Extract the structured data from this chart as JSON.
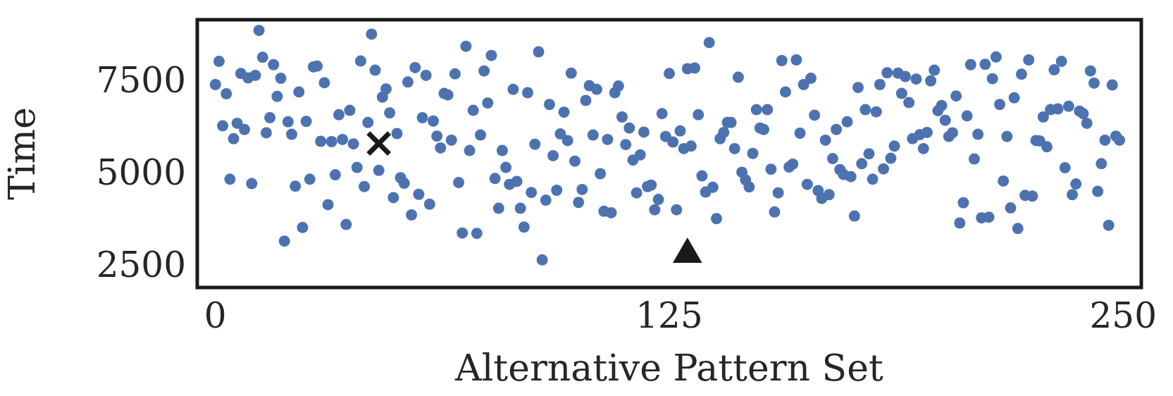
{
  "chart_data": {
    "type": "scatter",
    "xlabel": "Alternative Pattern Set",
    "ylabel": "Time",
    "xlim": [
      -5,
      255
    ],
    "xticks": [
      0,
      125,
      250
    ],
    "ylim": [
      1960,
      9230
    ],
    "yticks": [
      2500,
      5000,
      7500
    ],
    "grid": false,
    "legend": false,
    "marker": "circle",
    "x": [
      0,
      1,
      2,
      3,
      4,
      5,
      6,
      7,
      8,
      9,
      10,
      11,
      12,
      13,
      14,
      15,
      16,
      17,
      18,
      19,
      20,
      21,
      22,
      23,
      24,
      25,
      26,
      27,
      28,
      29,
      30,
      31,
      32,
      33,
      34,
      35,
      36,
      37,
      38,
      39,
      40,
      41,
      42,
      43,
      44,
      45,
      46,
      47,
      48,
      49,
      50,
      51,
      52,
      53,
      54,
      55,
      56,
      57,
      58,
      59,
      60,
      61,
      62,
      63,
      64,
      65,
      66,
      67,
      68,
      69,
      70,
      71,
      72,
      73,
      74,
      75,
      76,
      77,
      78,
      79,
      80,
      81,
      82,
      83,
      84,
      85,
      86,
      87,
      88,
      89,
      90,
      91,
      92,
      93,
      94,
      95,
      96,
      97,
      98,
      99,
      100,
      101,
      102,
      103,
      104,
      105,
      106,
      107,
      108,
      109,
      110,
      111,
      112,
      113,
      114,
      115,
      116,
      117,
      118,
      119,
      120,
      121,
      122,
      123,
      124,
      125,
      126,
      127,
      128,
      129,
      130,
      131,
      132,
      133,
      134,
      135,
      136,
      137,
      138,
      139,
      140,
      141,
      142,
      143,
      144,
      145,
      146,
      147,
      148,
      149,
      150,
      151,
      152,
      153,
      154,
      155,
      156,
      157,
      158,
      159,
      160,
      161,
      162,
      163,
      164,
      165,
      166,
      167,
      168,
      169,
      170,
      171,
      172,
      173,
      174,
      175,
      176,
      177,
      178,
      179,
      180,
      181,
      182,
      183,
      184,
      185,
      186,
      187,
      188,
      189,
      190,
      191,
      192,
      193,
      194,
      195,
      196,
      197,
      198,
      199,
      200,
      201,
      202,
      203,
      204,
      205,
      206,
      207,
      208,
      209,
      210,
      211,
      212,
      213,
      214,
      215,
      216,
      217,
      218,
      219,
      220,
      221,
      222,
      223,
      224,
      225,
      226,
      227,
      228,
      229,
      230,
      231,
      232,
      233,
      234,
      235,
      236,
      237,
      238,
      239,
      240,
      241,
      242,
      243,
      244,
      245,
      246,
      247,
      248,
      249
    ],
    "series": [
      {
        "color": "#4c72b0",
        "values": [
          7470,
          8100,
          6350,
          7220,
          4900,
          6000,
          6420,
          7770,
          6250,
          7650,
          4780,
          7720,
          8940,
          8210,
          6160,
          6570,
          8010,
          7150,
          7640,
          3220,
          6460,
          6120,
          4710,
          7270,
          3590,
          6470,
          4900,
          7950,
          7970,
          5930,
          7520,
          4210,
          5920,
          5020,
          6650,
          5980,
          3670,
          6770,
          5860,
          5220,
          8110,
          4700,
          6440,
          8840,
          7860,
          5140,
          7130,
          7350,
          6700,
          4400,
          6140,
          4940,
          4790,
          7540,
          3930,
          7930,
          4490,
          6570,
          7720,
          4220,
          6480,
          6070,
          5750,
          7230,
          7190,
          5960,
          7760,
          4810,
          3440,
          8510,
          5680,
          6770,
          3430,
          6100,
          7840,
          6970,
          8260,
          4920,
          4110,
          5680,
          5220,
          4760,
          7340,
          4840,
          4110,
          3600,
          7250,
          4540,
          5850,
          8360,
          2710,
          4330,
          6930,
          5540,
          4600,
          6130,
          6720,
          5950,
          7780,
          5390,
          4270,
          4620,
          7040,
          7440,
          6100,
          7340,
          5050,
          4030,
          5980,
          3990,
          7250,
          7430,
          6590,
          5840,
          6290,
          5420,
          4530,
          5560,
          6180,
          4700,
          4740,
          4070,
          4350,
          6680,
          6060,
          7770,
          5910,
          4070,
          6210,
          5730,
          7900,
          5800,
          7920,
          6650,
          4990,
          4550,
          8610,
          4680,
          3830,
          6000,
          6170,
          6440,
          6440,
          5730,
          7670,
          5090,
          4880,
          4690,
          5600,
          6790,
          6290,
          6250,
          6790,
          5170,
          4010,
          4530,
          8120,
          7270,
          5230,
          5310,
          8140,
          6150,
          7470,
          4760,
          7640,
          6640,
          4590,
          4380,
          5960,
          4480,
          5460,
          6250,
          5160,
          5030,
          6460,
          4970,
          3900,
          7390,
          5320,
          6790,
          5590,
          4900,
          6730,
          7470,
          5180,
          7790,
          5470,
          5800,
          7780,
          7230,
          7690,
          6980,
          6000,
          7620,
          6110,
          5730,
          6170,
          7570,
          7860,
          6760,
          6900,
          6500,
          6060,
          6160,
          7160,
          3710,
          4260,
          6620,
          8010,
          5450,
          6120,
          3850,
          8020,
          3870,
          7630,
          8220,
          6930,
          4850,
          6060,
          4120,
          7110,
          3560,
          7750,
          4460,
          8140,
          4440,
          5950,
          5940,
          6590,
          5780,
          6790,
          7870,
          6810,
          8100,
          5210,
          6880,
          4480,
          4770,
          6750,
          6680,
          6420,
          7840,
          7510,
          4570,
          5320,
          5960,
          3650,
          7460,
          6070,
          5960
        ]
      },
      {
        "color": "#1a1a1a",
        "marker": "cross",
        "x": [
          45
        ],
        "values": [
          5870
        ]
      },
      {
        "color": "#1a1a1a",
        "marker": "triangle",
        "x": [
          130
        ],
        "values": [
          2860
        ]
      }
    ]
  }
}
